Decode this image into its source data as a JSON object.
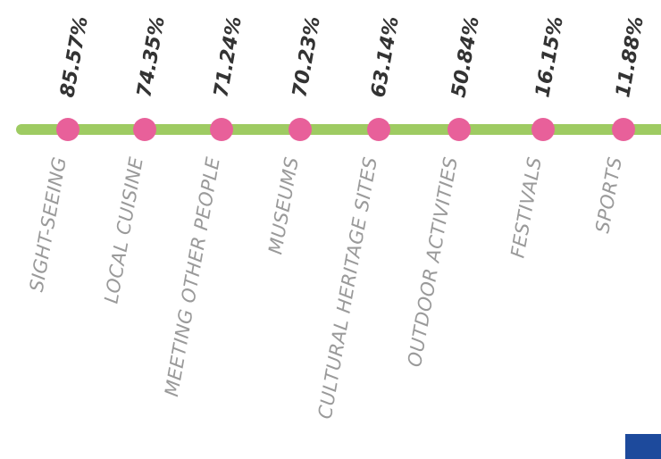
{
  "chart_data": {
    "type": "scatter",
    "categories": [
      "SIGHT-SEEING",
      "LOCAL CUISINE",
      "MEETING OTHER PEOPLE",
      "MUSEUMS",
      "CULTURAL HERITAGE SITES",
      "OUTDOOR ACTIVITIES",
      "FESTIVALS",
      "SPORTS"
    ],
    "value_labels": [
      "85.57%",
      "74.35%",
      "71.24%",
      "70.23%",
      "63.14%",
      "50.84%",
      "16.15%",
      "11.88%"
    ],
    "values": [
      85.57,
      74.35,
      71.24,
      70.23,
      63.14,
      50.84,
      16.15,
      11.88
    ],
    "unit": "%",
    "colors": {
      "line": "#9ecb62",
      "dot": "#e8609a",
      "value_text": "#333333",
      "category_text": "#9a9a9a",
      "corner_block": "#1d4a9c"
    }
  }
}
